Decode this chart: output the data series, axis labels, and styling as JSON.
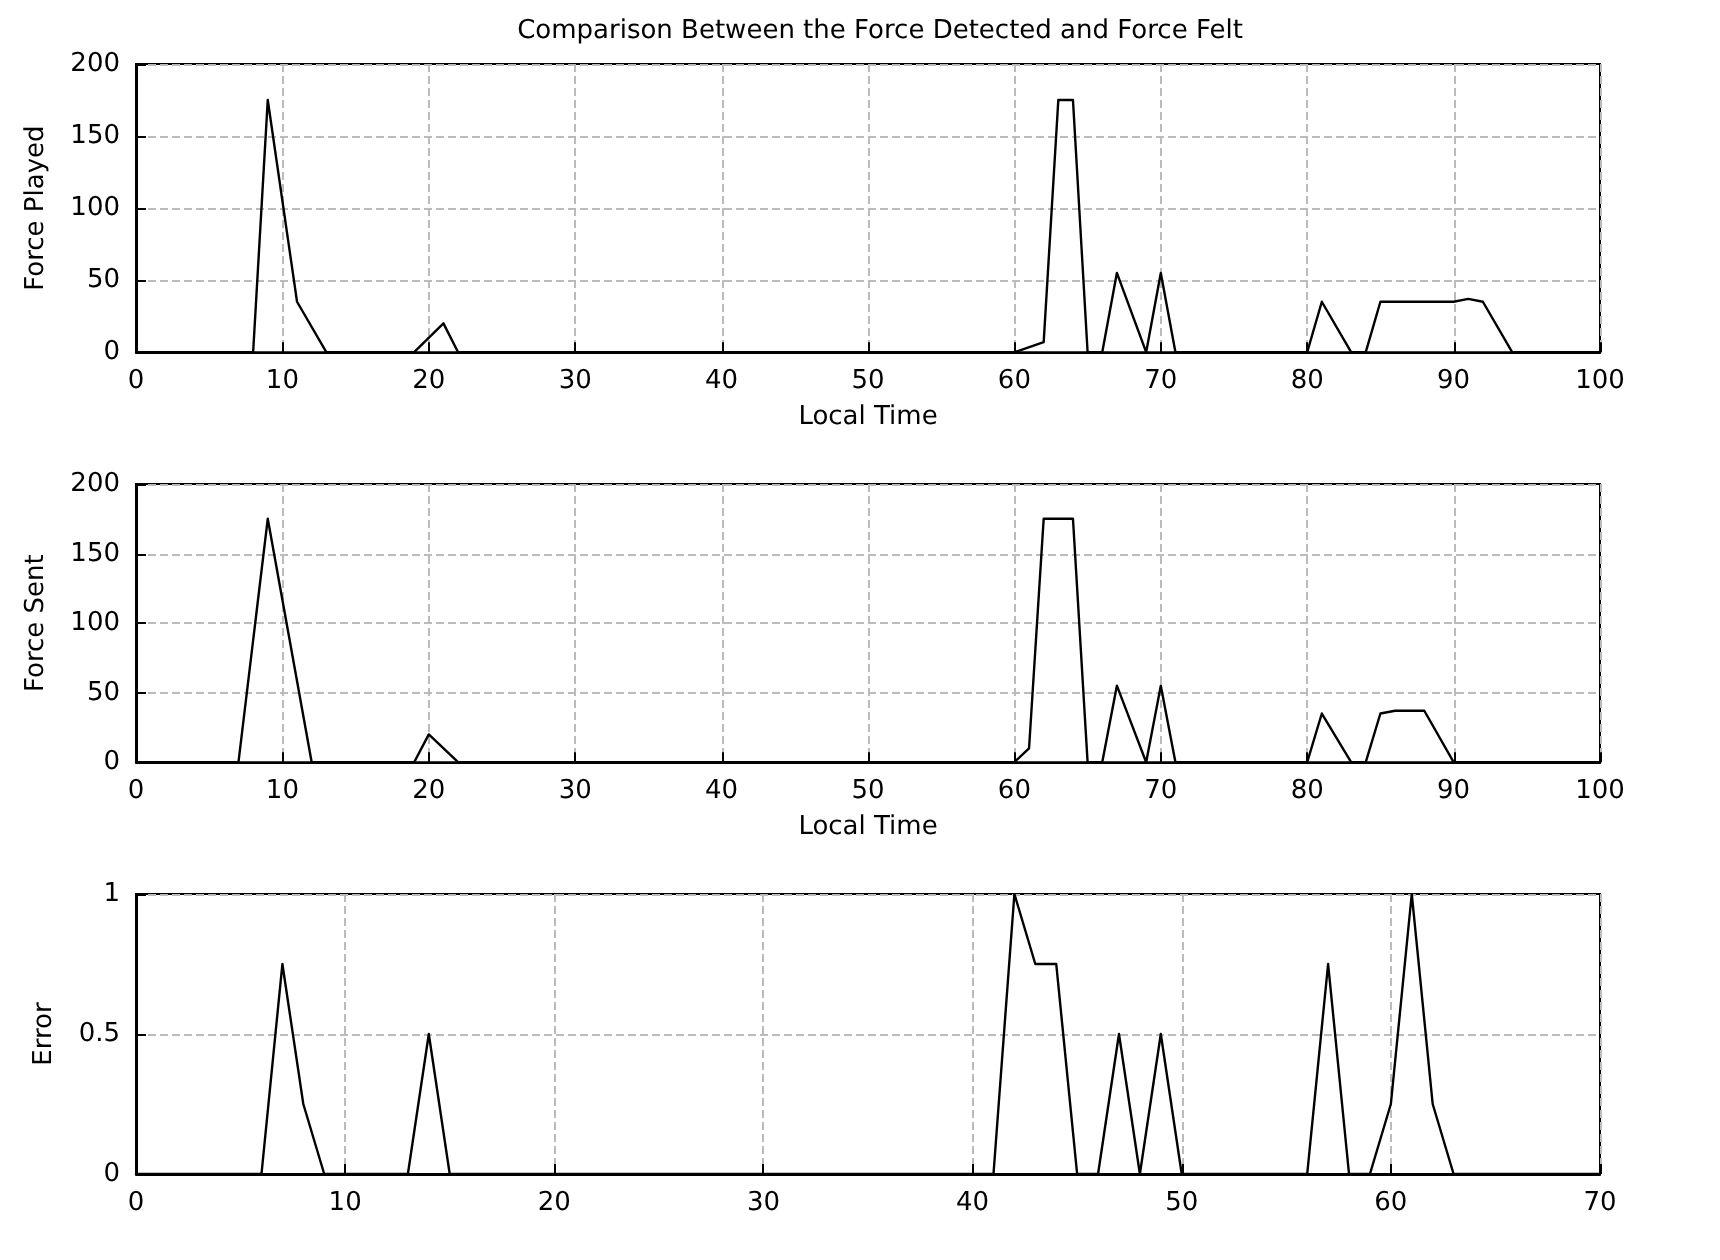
{
  "chart_data": [
    {
      "type": "line",
      "title": "Comparison Between the Force Detected and Force Felt",
      "xlabel": "Local Time",
      "ylabel": "Force Played",
      "xlim": [
        0,
        100
      ],
      "xticks": [
        0,
        10,
        20,
        30,
        40,
        50,
        60,
        70,
        80,
        90,
        100
      ],
      "ylim": [
        0,
        200
      ],
      "yticks": [
        0,
        50,
        100,
        150,
        200
      ],
      "grid": true,
      "marker": "none",
      "line_style": "solid",
      "series": [
        {
          "color": "#000000",
          "x": [
            0,
            8,
            9,
            11,
            13,
            19,
            21,
            22,
            60,
            62,
            63,
            64,
            65,
            66,
            67,
            69,
            70,
            71,
            80,
            81,
            83,
            84,
            85,
            90,
            91,
            92,
            94,
            100
          ],
          "values": [
            0,
            0,
            175,
            35,
            0,
            0,
            20,
            0,
            0,
            7,
            175,
            175,
            0,
            0,
            55,
            0,
            55,
            0,
            0,
            35,
            0,
            0,
            35,
            35,
            37,
            35,
            0,
            0
          ]
        }
      ]
    },
    {
      "type": "line",
      "xlabel": "Local Time",
      "ylabel": "Force Sent",
      "xlim": [
        0,
        100
      ],
      "xticks": [
        0,
        10,
        20,
        30,
        40,
        50,
        60,
        70,
        80,
        90,
        100
      ],
      "ylim": [
        0,
        200
      ],
      "yticks": [
        0,
        50,
        100,
        150,
        200
      ],
      "grid": true,
      "marker": "none",
      "line_style": "solid",
      "series": [
        {
          "color": "#000000",
          "x": [
            0,
            7,
            9,
            12,
            19,
            20,
            22,
            60,
            61,
            62,
            64,
            65,
            66,
            67,
            69,
            70,
            71,
            80,
            81,
            83,
            84,
            85,
            86,
            88,
            90,
            100
          ],
          "values": [
            0,
            0,
            175,
            0,
            0,
            20,
            0,
            0,
            10,
            175,
            175,
            0,
            0,
            55,
            0,
            55,
            0,
            0,
            35,
            0,
            0,
            35,
            37,
            37,
            0,
            0
          ]
        }
      ]
    },
    {
      "type": "line",
      "ylabel": "Error",
      "xlim": [
        0,
        70
      ],
      "xticks": [
        0,
        10,
        20,
        30,
        40,
        50,
        60,
        70
      ],
      "ylim": [
        0,
        1
      ],
      "yticks": [
        0,
        0.5,
        1
      ],
      "grid": true,
      "marker": "none",
      "line_style": "solid",
      "series": [
        {
          "color": "#000000",
          "x": [
            0,
            6,
            7,
            8,
            9,
            13,
            14,
            15,
            41,
            42,
            43,
            44,
            45,
            46,
            47,
            48,
            49,
            50,
            56,
            57,
            58,
            59,
            60,
            61,
            62,
            63,
            70
          ],
          "values": [
            0,
            0,
            0.75,
            0.25,
            0,
            0,
            0.5,
            0,
            0,
            1,
            0.75,
            0.75,
            0,
            0,
            0.5,
            0,
            0.5,
            0,
            0,
            0.75,
            0,
            0,
            0.25,
            1,
            0.25,
            0,
            0
          ]
        }
      ]
    }
  ]
}
